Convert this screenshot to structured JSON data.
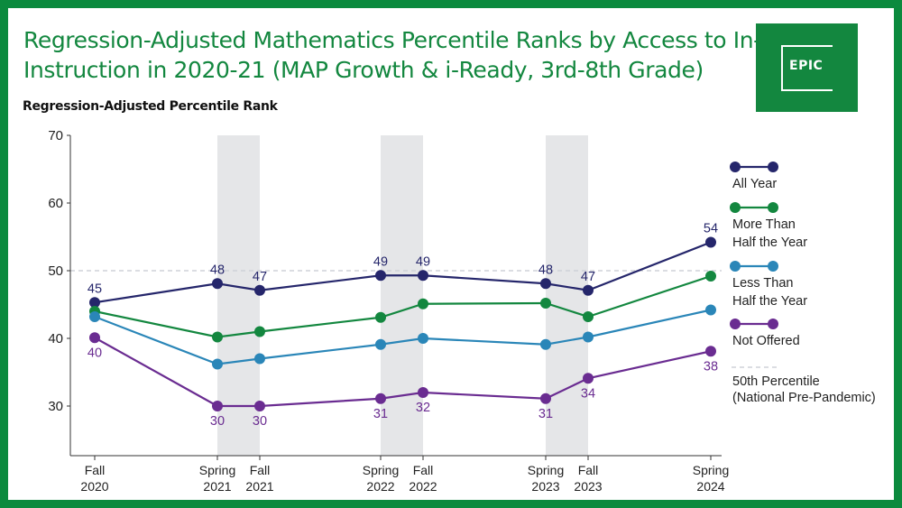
{
  "title": {
    "line1": "Regression-Adjusted Mathematics Percentile Ranks by Access to In-Person",
    "line2": "Instruction in 2020-21 (MAP Growth & i-Ready, 3rd-8th Grade)"
  },
  "logo": {
    "text": "EPIC"
  },
  "colors": {
    "background": "#0b8a3e",
    "title": "#13873f",
    "all_year": "#25266b",
    "more_than_half": "#13873f",
    "less_than_half": "#2a86b8",
    "not_offered": "#6a2c91",
    "reference": "#cfd2d8",
    "shade": "#e5e6e8"
  },
  "chart_data": {
    "type": "line",
    "ylabel": "Regression-Adjusted Percentile Rank",
    "ylim": [
      25,
      70
    ],
    "yticks": [
      30,
      40,
      50,
      60,
      70
    ],
    "categories": [
      {
        "line1": "Fall",
        "line2": "2020"
      },
      {
        "line1": "Spring",
        "line2": "2021"
      },
      {
        "line1": "Fall",
        "line2": "2021"
      },
      {
        "line1": "Spring",
        "line2": "2022"
      },
      {
        "line1": "Fall",
        "line2": "2022"
      },
      {
        "line1": "Spring",
        "line2": "2023"
      },
      {
        "line1": "Fall",
        "line2": "2023"
      },
      {
        "line1": "Spring",
        "line2": "2024"
      }
    ],
    "shaded_periods": [
      [
        1,
        2
      ],
      [
        3,
        4
      ],
      [
        5,
        6
      ]
    ],
    "reference_line": {
      "value": 50,
      "label_line1": "50th Percentile",
      "label_line2": "(National Pre-Pandemic)"
    },
    "series": [
      {
        "key": "all_year",
        "name_line1": "All Year",
        "name_line2": "",
        "color": "#25266b",
        "values": [
          45.3,
          48.1,
          47.1,
          49.3,
          49.3,
          48.1,
          47.1,
          54.2
        ],
        "labels": [
          "45",
          "48",
          "47",
          "49",
          "49",
          "48",
          "47",
          "54"
        ],
        "label_position": "above"
      },
      {
        "key": "more_than_half",
        "name_line1": "More Than",
        "name_line2": "Half the Year",
        "color": "#13873f",
        "values": [
          44.0,
          40.2,
          41.0,
          43.1,
          45.1,
          45.2,
          43.2,
          49.2
        ],
        "labels": [],
        "label_position": "none"
      },
      {
        "key": "less_than_half",
        "name_line1": "Less Than",
        "name_line2": "Half the Year",
        "color": "#2a86b8",
        "values": [
          43.2,
          36.2,
          37.0,
          39.1,
          40.0,
          39.1,
          40.2,
          44.2
        ],
        "labels": [],
        "label_position": "none"
      },
      {
        "key": "not_offered",
        "name_line1": "Not Offered",
        "name_line2": "",
        "color": "#6a2c91",
        "values": [
          40.1,
          30.0,
          30.0,
          31.1,
          32.0,
          31.1,
          34.1,
          38.1
        ],
        "labels": [
          "40",
          "30",
          "30",
          "31",
          "32",
          "31",
          "34",
          "38"
        ],
        "label_position": "below"
      }
    ]
  }
}
